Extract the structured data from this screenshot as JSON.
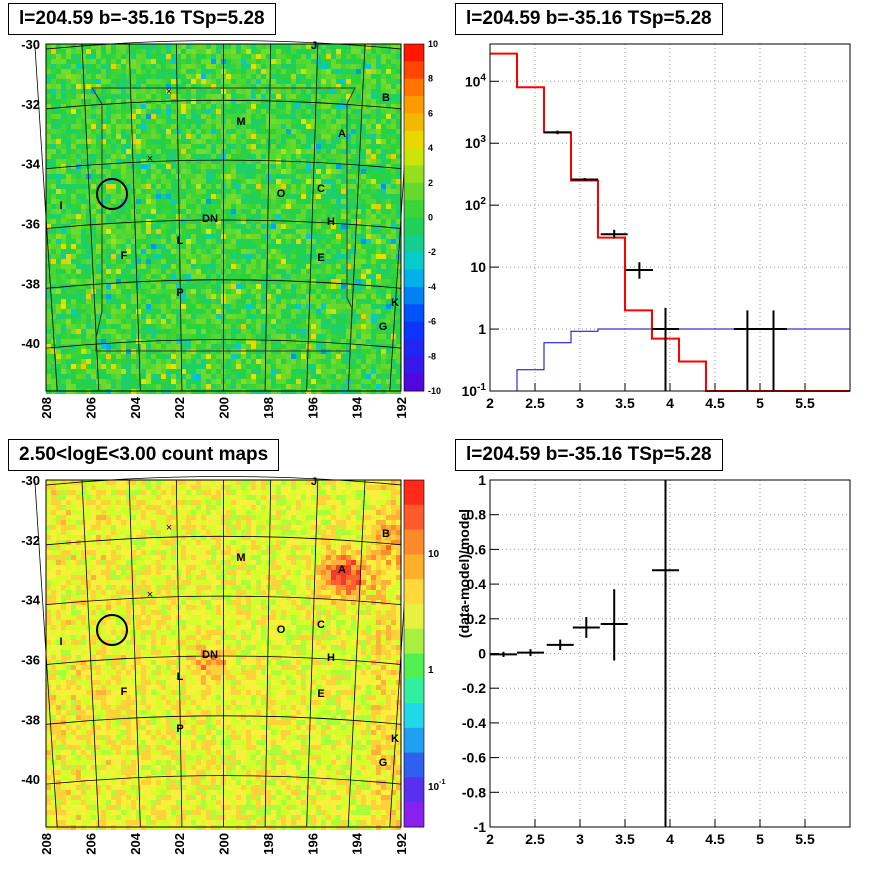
{
  "titles": {
    "map_top": "l=204.59 b=-35.16 TSp=5.28",
    "spectrum": "l=204.59 b=-35.16 TSp=5.28",
    "map_bottom": "2.50<logE<3.00 count maps",
    "residual": "l=204.59 b=-35.16 TSp=5.28"
  },
  "colors": {
    "data": "#000000",
    "model_total": "#ff0000",
    "model_component": "#0000cc",
    "grid": "#999999"
  },
  "maps": {
    "x_ticks": [
      "208",
      "206",
      "204",
      "202",
      "200",
      "198",
      "196",
      "194",
      "192"
    ],
    "y_ticks": [
      "-30",
      "-32",
      "-34",
      "-36",
      "-38",
      "-40"
    ],
    "top_colorbar_ticks": [
      "10",
      "8",
      "6",
      "4",
      "2",
      "0",
      "-2",
      "-4",
      "-6",
      "-8",
      "-10"
    ],
    "bottom_colorbar_ticks": [
      "10",
      "1",
      "10^-1"
    ],
    "source_labels_top": [
      "J",
      "B",
      "M",
      "A",
      "O",
      "C",
      "I",
      "DN",
      "H",
      "L",
      "F",
      "E",
      "P",
      "K",
      "G"
    ],
    "source_labels_bottom": [
      "J",
      "B",
      "M",
      "A",
      "O",
      "C",
      "I",
      "DN",
      "H",
      "L",
      "F",
      "E",
      "P",
      "K",
      "G"
    ]
  },
  "chart_data": [
    {
      "type": "line",
      "panel": "spectrum",
      "title": "l=204.59 b=-35.16 TSp=5.28",
      "xlabel": "",
      "ylabel": "",
      "xlim": [
        2,
        6
      ],
      "ylim": [
        0.1,
        40000
      ],
      "ylog": true,
      "grid": true,
      "x_ticks": [
        "2",
        "2.5",
        "3",
        "3.5",
        "4",
        "4.5",
        "5",
        "5.5"
      ],
      "y_ticks": [
        "10^{-1}",
        "1",
        "10",
        "10^{2}",
        "10^{3}",
        "10^{4}"
      ],
      "model_total_steps": {
        "edges": [
          2.0,
          2.3,
          2.6,
          2.9,
          3.2,
          3.5,
          3.8,
          4.1,
          4.4,
          6.0
        ],
        "values": [
          28000,
          8000,
          1500,
          250,
          30,
          2,
          0.7,
          0.3,
          0.1
        ]
      },
      "model_component_steps": {
        "edges": [
          2.3,
          2.6,
          2.9,
          3.2,
          3.5,
          6.0
        ],
        "values": [
          0.22,
          0.6,
          0.92,
          1.0,
          1.0
        ]
      },
      "data_points": [
        {
          "x": 2.75,
          "y": 1500,
          "xerr": 0.15,
          "ylo": 1400,
          "yhi": 1600
        },
        {
          "x": 3.05,
          "y": 260,
          "xerr": 0.15,
          "ylo": 245,
          "yhi": 275
        },
        {
          "x": 3.38,
          "y": 34,
          "xerr": 0.15,
          "ylo": 29,
          "yhi": 40
        },
        {
          "x": 3.66,
          "y": 9,
          "xerr": 0.15,
          "ylo": 6.5,
          "yhi": 12
        },
        {
          "x": 3.95,
          "y": 1.0,
          "xerr": 0.15,
          "ylo": 0.1,
          "yhi": 2.2
        },
        {
          "x": 4.86,
          "y": 1.0,
          "xerr": 0.15,
          "ylo": 0.1,
          "yhi": 2.0
        },
        {
          "x": 5.15,
          "y": 1.0,
          "xerr": 0.15,
          "ylo": 0.1,
          "yhi": 2.0
        }
      ]
    },
    {
      "type": "scatter",
      "panel": "residual",
      "title": "l=204.59 b=-35.16 TSp=5.28",
      "xlabel": "",
      "ylabel": "(data-model)/model",
      "xlim": [
        2,
        6
      ],
      "ylim": [
        -1,
        1
      ],
      "grid": true,
      "x_ticks": [
        "2",
        "2.5",
        "3",
        "3.5",
        "4",
        "4.5",
        "5",
        "5.5"
      ],
      "y_ticks": [
        "1",
        "0.8",
        "0.6",
        "0.4",
        "0.2",
        "0",
        "-0.2",
        "-0.4",
        "-0.6",
        "-0.8",
        "-1"
      ],
      "data_points": [
        {
          "x": 2.15,
          "y": -0.005,
          "xerr": 0.15,
          "ylo": -0.02,
          "yhi": 0.01
        },
        {
          "x": 2.45,
          "y": 0.005,
          "xerr": 0.15,
          "ylo": -0.015,
          "yhi": 0.025
        },
        {
          "x": 2.78,
          "y": 0.05,
          "xerr": 0.15,
          "ylo": 0.02,
          "yhi": 0.08
        },
        {
          "x": 3.07,
          "y": 0.15,
          "xerr": 0.15,
          "ylo": 0.09,
          "yhi": 0.21
        },
        {
          "x": 3.38,
          "y": 0.17,
          "xerr": 0.15,
          "ylo": -0.04,
          "yhi": 0.37
        },
        {
          "x": 3.95,
          "y": 0.48,
          "xerr": 0.15,
          "ylo": -1,
          "yhi": 1
        }
      ]
    }
  ]
}
